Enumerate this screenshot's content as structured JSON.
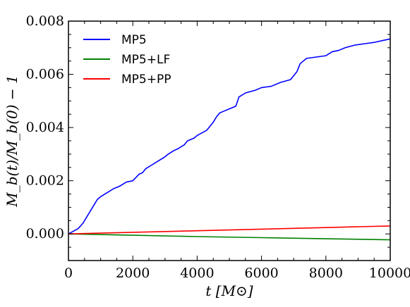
{
  "chart_data": {
    "type": "line",
    "xlabel": "t [M⊙]",
    "ylabel": "M_b(t)/M_b(0) − 1",
    "xlim": [
      0,
      10000
    ],
    "ylim": [
      -0.001,
      0.008
    ],
    "xticks": [
      0,
      2000,
      4000,
      6000,
      8000,
      10000
    ],
    "xtick_labels": [
      "0",
      "2000",
      "4000",
      "6000",
      "8000",
      "10000"
    ],
    "yticks": [
      0.0,
      0.002,
      0.004,
      0.006,
      0.008
    ],
    "ytick_labels": [
      "0.000",
      "0.002",
      "0.004",
      "0.006",
      "0.008"
    ],
    "grid": false,
    "legend_position": "top-left",
    "series": [
      {
        "name": "MP5",
        "color": "#0000ff",
        "x": [
          0,
          150,
          300,
          450,
          550,
          700,
          800,
          900,
          1000,
          1200,
          1400,
          1600,
          1800,
          2000,
          2200,
          2300,
          2400,
          2600,
          2800,
          3000,
          3100,
          3300,
          3400,
          3600,
          3700,
          3900,
          4000,
          4300,
          4500,
          4600,
          4700,
          4800,
          5000,
          5200,
          5300,
          5500,
          5800,
          6000,
          6300,
          6600,
          6900,
          7000,
          7100,
          7200,
          7400,
          7700,
          8000,
          8200,
          8400,
          8600,
          8900,
          9200,
          9500,
          9800,
          10000
        ],
        "values": [
          0.0,
          0.0001,
          0.0002,
          0.0004,
          0.0006,
          0.0009,
          0.0011,
          0.0013,
          0.0014,
          0.00155,
          0.0017,
          0.0018,
          0.00195,
          0.002,
          0.00225,
          0.0023,
          0.00245,
          0.0026,
          0.00275,
          0.0029,
          0.003,
          0.00315,
          0.0032,
          0.00335,
          0.0035,
          0.0036,
          0.0037,
          0.0039,
          0.0042,
          0.0044,
          0.00455,
          0.0046,
          0.0047,
          0.0048,
          0.00515,
          0.0053,
          0.0054,
          0.0055,
          0.00555,
          0.0057,
          0.0058,
          0.00595,
          0.0061,
          0.0064,
          0.0066,
          0.00665,
          0.0067,
          0.00685,
          0.0069,
          0.007,
          0.0071,
          0.00715,
          0.0072,
          0.00728,
          0.00733
        ]
      },
      {
        "name": "MP5+LF",
        "color": "#008000",
        "x": [
          0,
          2000,
          4000,
          6000,
          8000,
          10000
        ],
        "values": [
          0.0,
          -5e-05,
          -0.0001,
          -0.00014,
          -0.00018,
          -0.00022
        ]
      },
      {
        "name": "MP5+PP",
        "color": "#ff0000",
        "x": [
          0,
          2000,
          4000,
          6000,
          8000,
          10000
        ],
        "values": [
          0.0,
          6e-05,
          0.00012,
          0.00018,
          0.00024,
          0.0003
        ]
      }
    ]
  }
}
